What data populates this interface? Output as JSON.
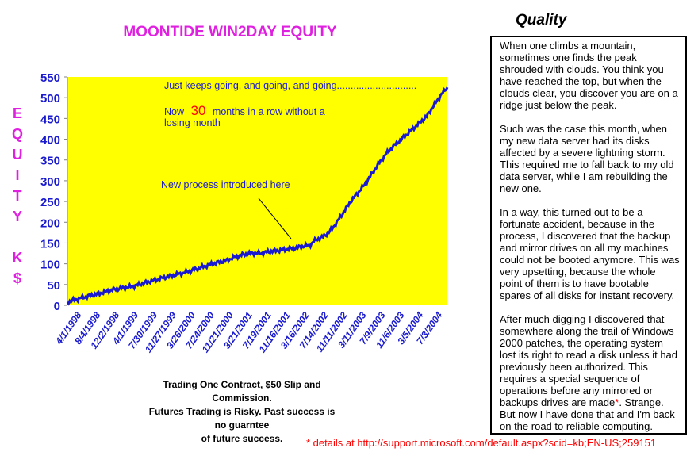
{
  "chart_title": "MOONTIDE WIN2DAY EQUITY",
  "ylabel_letters": [
    "E",
    "Q",
    "U",
    "I",
    "T",
    "Y",
    "",
    "K",
    "$"
  ],
  "annotations": {
    "keeps_going": "Just keeps going, and going, and going.............................",
    "now_prefix": "Now",
    "now_number": "30",
    "now_suffix": "months in a row without a",
    "now_line2": "losing month",
    "new_process": "New process introduced here"
  },
  "disclaimer": {
    "line1": "Trading One Contract, $50 Slip and Commission.",
    "line2": "Futures Trading is Risky. Past success is no guarntee",
    "line3": "of future success."
  },
  "sidebar": {
    "heading": "Quality",
    "p1": "When one climbs a mountain, sometimes one finds the peak shrouded with clouds. You think you have reached the top, but when the clouds clear, you discover you are on a ridge just below the peak.",
    "p2": "Such was the case this month, when my new data server had its disks affected by a severe lightning storm. This  required me to fall back to my old data server, while I am rebuilding the new one.",
    "p3": "In a way, this turned out to be a fortunate accident, because in the process, I discovered that the backup and mirror drives on all my machines could not be booted anymore. This was very upsetting, because the whole point of them is to have bootable spares of all disks for instant recovery.",
    "p4_before": "After much digging I discovered that somewhere along the trail of Windows 2000 patches, the operating system lost its right to read a disk unless it had previously been authorized. This requires a special sequence of operations before any mirrored or backups drives are made",
    "p4_ast": "*",
    "p4_after": ". Strange. But now I have done that and I'm back on the road to reliable computing."
  },
  "details_note": "* details at http://support.microsoft.com/default.aspx?scid=kb;EN-US;259151",
  "colors": {
    "plot_bg": "#ffff00",
    "line": "#1a1ad0",
    "axis_text": "#1a1ad0",
    "title": "#e020e0",
    "highlight": "#ff0000"
  },
  "chart_data": {
    "type": "line",
    "title": "MOONTIDE WIN2DAY EQUITY",
    "ylabel": "EQUITY K$",
    "ylim": [
      0,
      550
    ],
    "yticks": [
      0,
      50,
      100,
      150,
      200,
      250,
      300,
      350,
      400,
      450,
      500,
      550
    ],
    "xtick_labels": [
      "4/1/1998",
      "8/4/1998",
      "12/2/1998",
      "4/1/1999",
      "7/30/1999",
      "11/27/1999",
      "3/26/2000",
      "7/24/2000",
      "11/21/2000",
      "3/21/2001",
      "7/19/2001",
      "11/16/2001",
      "3/16/2002",
      "7/14/2002",
      "11/11/2002",
      "3/11/2003",
      "7/9/2003",
      "11/6/2003",
      "3/5/2004",
      "7/3/2004"
    ],
    "grid": false,
    "series": [
      {
        "values": [
          8,
          13,
          18,
          22,
          26,
          30,
          35,
          39,
          42,
          44,
          48,
          53,
          58,
          62,
          67,
          71,
          75,
          79,
          84,
          89,
          95,
          100,
          104,
          108,
          115,
          120,
          124,
          126,
          125,
          129,
          131,
          133,
          136,
          138,
          142,
          144,
          158,
          165,
          178,
          200,
          225,
          250,
          270,
          290,
          315,
          340,
          362,
          380,
          395,
          410,
          425,
          440,
          455,
          480,
          505,
          525
        ]
      }
    ]
  }
}
